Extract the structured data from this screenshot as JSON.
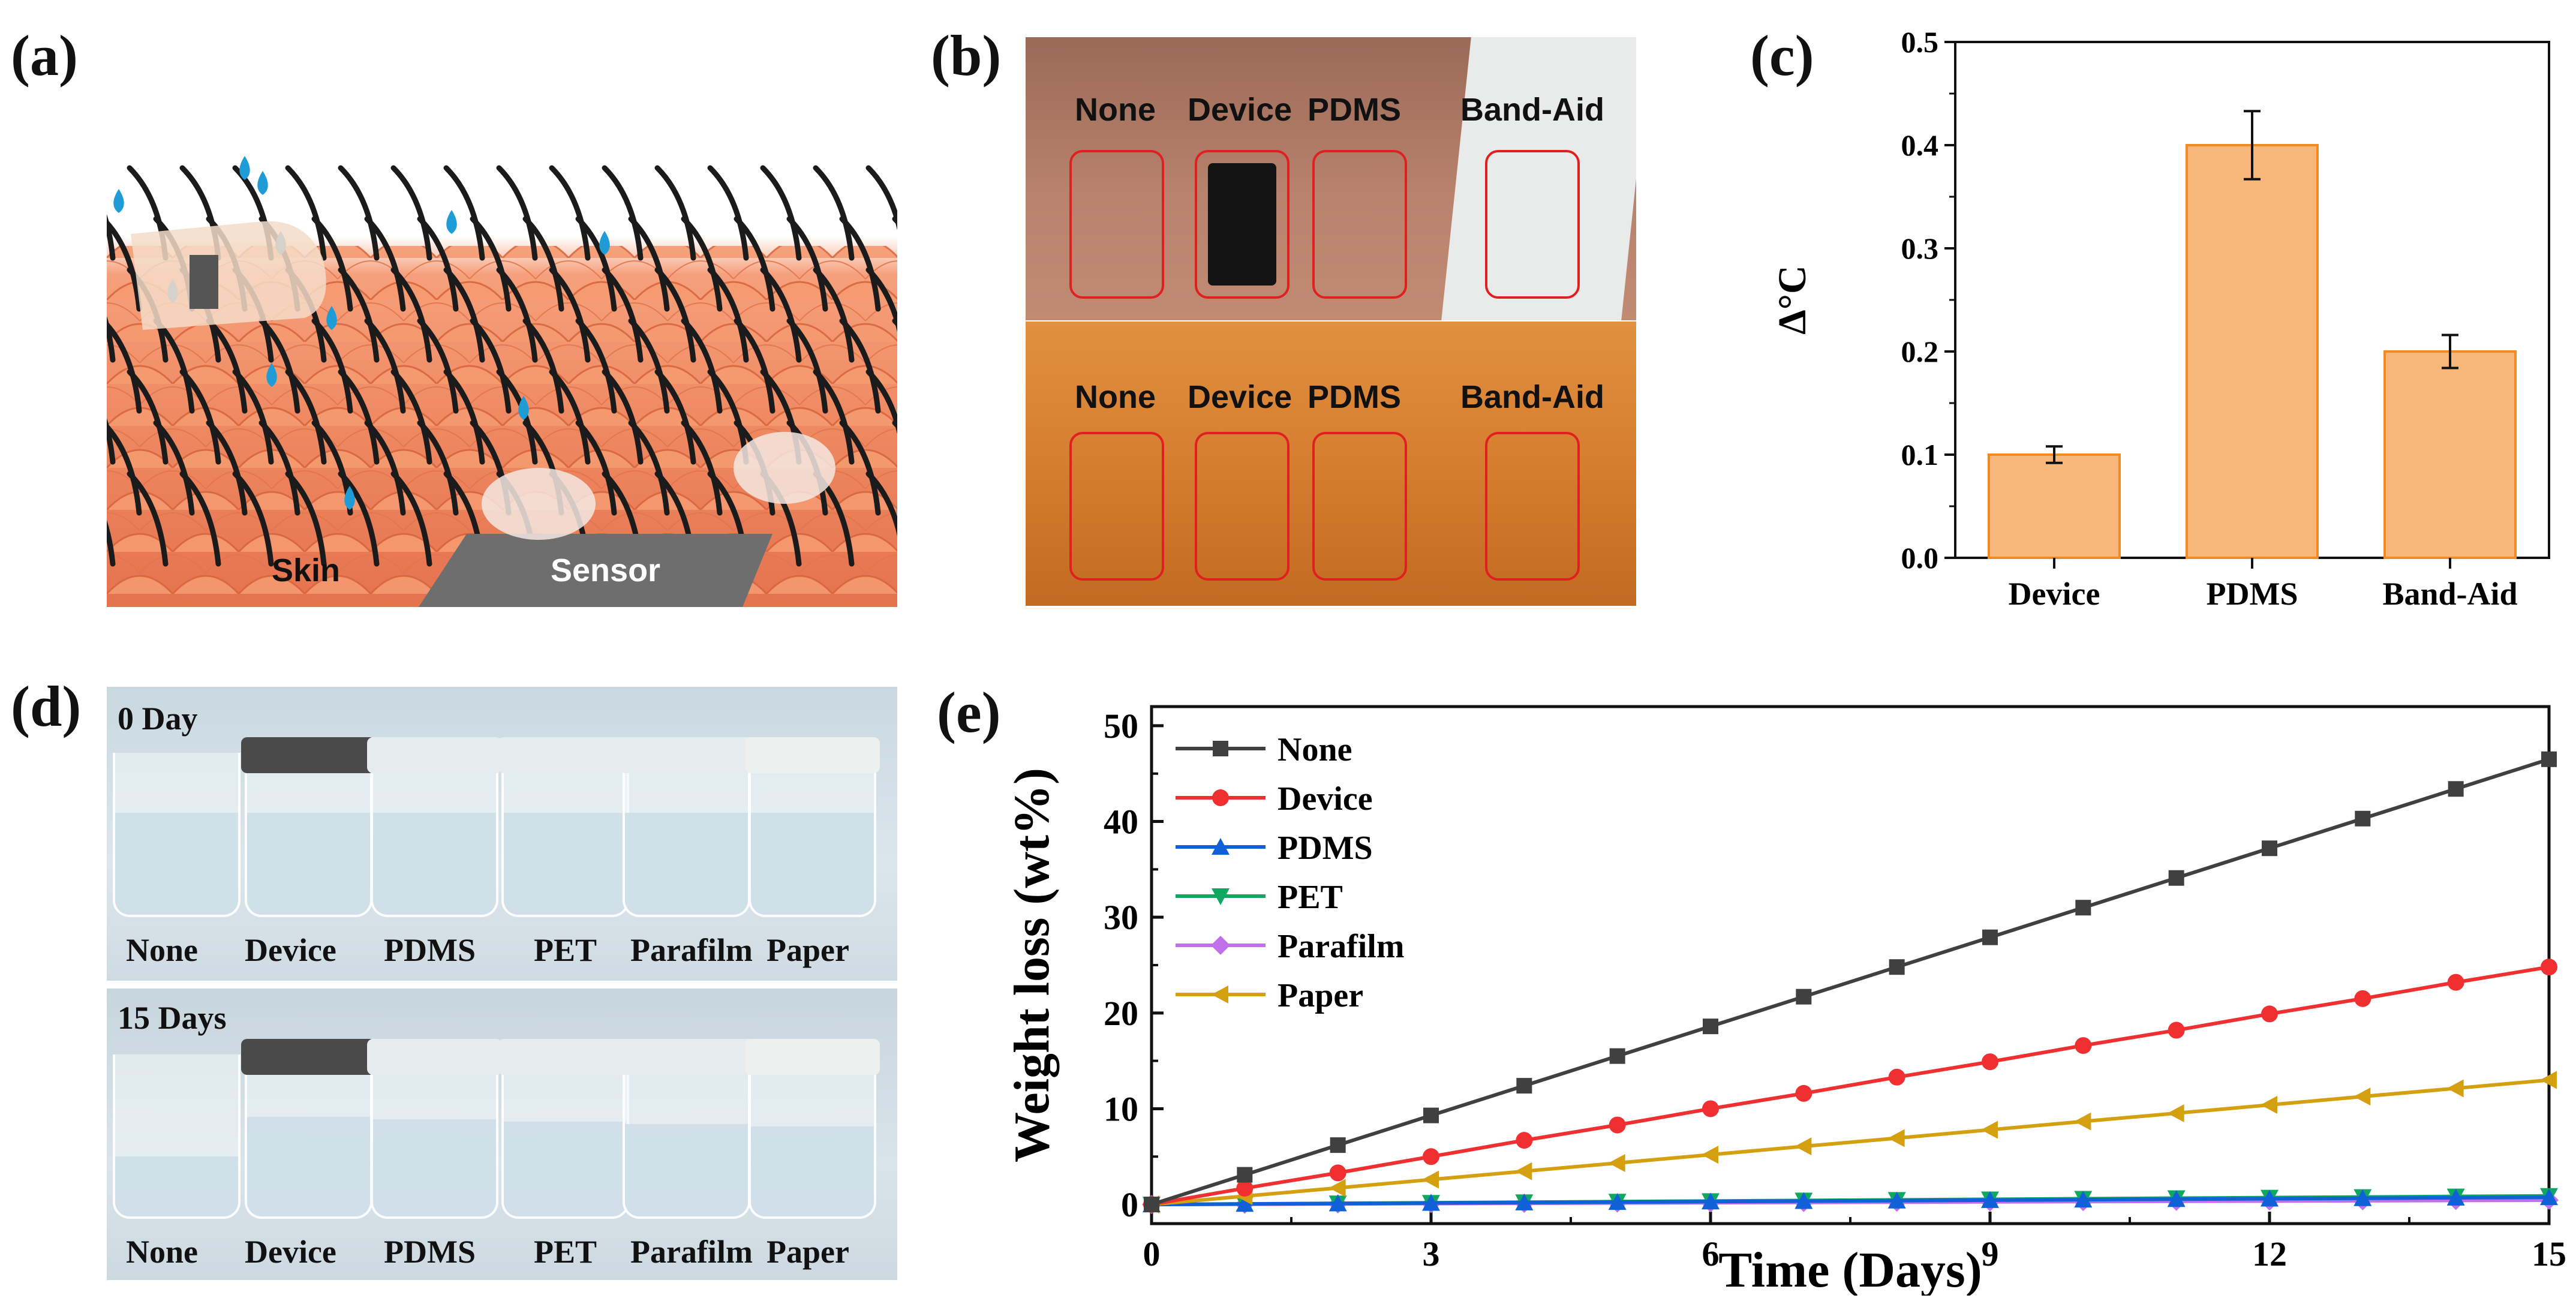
{
  "panels": {
    "a": {
      "letter": "(a)",
      "labels": {
        "skin": "Skin",
        "sensor": "Sensor"
      }
    },
    "b": {
      "letter": "(b)",
      "top_labels": [
        "None",
        "Device",
        "PDMS",
        "Band-Aid"
      ],
      "bottom_labels": [
        "None",
        "Device",
        "PDMS",
        "Band-Aid"
      ]
    },
    "c": {
      "letter": "(c)"
    },
    "d": {
      "letter": "(d)",
      "top_title": "0 Day",
      "bottom_title": "15 Days",
      "top_labels": [
        "None",
        "Device",
        "PDMS",
        "PET",
        "Parafilm",
        "Paper"
      ],
      "bottom_labels": [
        "None",
        "Device",
        "PDMS",
        "PET",
        "Parafilm",
        "Paper"
      ]
    },
    "e": {
      "letter": "(e)"
    }
  },
  "colors": {
    "bar_fill": "#f7b77a",
    "bar_stroke": "#f08a24",
    "none": "#404040",
    "device": "#f03030",
    "pdms": "#1060d8",
    "pet": "#10a860",
    "parafilm": "#c070e8",
    "paper": "#d4a010"
  },
  "chart_data": [
    {
      "id": "c",
      "type": "bar",
      "title": "",
      "xlabel": "",
      "ylabel": "Δ°C",
      "categories": [
        "Device",
        "PDMS",
        "Band-Aid"
      ],
      "values": [
        0.1,
        0.4,
        0.2
      ],
      "errors": [
        0.008,
        0.033,
        0.016
      ],
      "ylim": [
        0.0,
        0.5
      ],
      "yticks": [
        "0.0",
        "0.1",
        "0.2",
        "0.3",
        "0.4",
        "0.5"
      ]
    },
    {
      "id": "e",
      "type": "line",
      "title": "",
      "xlabel": "Time (Days)",
      "ylabel": "Weight loss (wt%)",
      "xlim": [
        0,
        15
      ],
      "ylim": [
        -2,
        52
      ],
      "xticks": [
        "0",
        "3",
        "6",
        "9",
        "12",
        "15"
      ],
      "yticks": [
        "0",
        "10",
        "20",
        "30",
        "40",
        "50"
      ],
      "legend_position": "top-left",
      "x": [
        0,
        1,
        2,
        3,
        4,
        5,
        6,
        7,
        8,
        9,
        10,
        11,
        12,
        13,
        14,
        15
      ],
      "series": [
        {
          "name": "None",
          "marker": "square",
          "values": [
            0,
            3.1,
            6.2,
            9.3,
            12.4,
            15.5,
            18.6,
            21.7,
            24.8,
            27.9,
            31.0,
            34.1,
            37.2,
            40.3,
            43.4,
            46.5
          ]
        },
        {
          "name": "Device",
          "marker": "circle",
          "values": [
            0,
            1.7,
            3.3,
            5.0,
            6.7,
            8.3,
            10.0,
            11.6,
            13.3,
            14.9,
            16.6,
            18.2,
            19.9,
            21.5,
            23.2,
            24.8
          ]
        },
        {
          "name": "PDMS",
          "marker": "triangle-up",
          "values": [
            0,
            0.05,
            0.1,
            0.15,
            0.2,
            0.25,
            0.3,
            0.35,
            0.4,
            0.45,
            0.5,
            0.55,
            0.6,
            0.65,
            0.7,
            0.75
          ]
        },
        {
          "name": "PET",
          "marker": "triangle-down",
          "values": [
            0,
            0.06,
            0.12,
            0.18,
            0.24,
            0.3,
            0.36,
            0.42,
            0.48,
            0.54,
            0.6,
            0.66,
            0.72,
            0.78,
            0.84,
            0.9
          ]
        },
        {
          "name": "Parafilm",
          "marker": "diamond",
          "values": [
            0,
            0.03,
            0.06,
            0.09,
            0.12,
            0.15,
            0.18,
            0.21,
            0.24,
            0.27,
            0.3,
            0.33,
            0.36,
            0.39,
            0.42,
            0.45
          ]
        },
        {
          "name": "Paper",
          "marker": "triangle-left",
          "values": [
            0,
            0.87,
            1.73,
            2.6,
            3.47,
            4.33,
            5.2,
            6.07,
            6.93,
            7.8,
            8.67,
            9.53,
            10.4,
            11.27,
            12.13,
            13.0
          ]
        }
      ]
    }
  ]
}
